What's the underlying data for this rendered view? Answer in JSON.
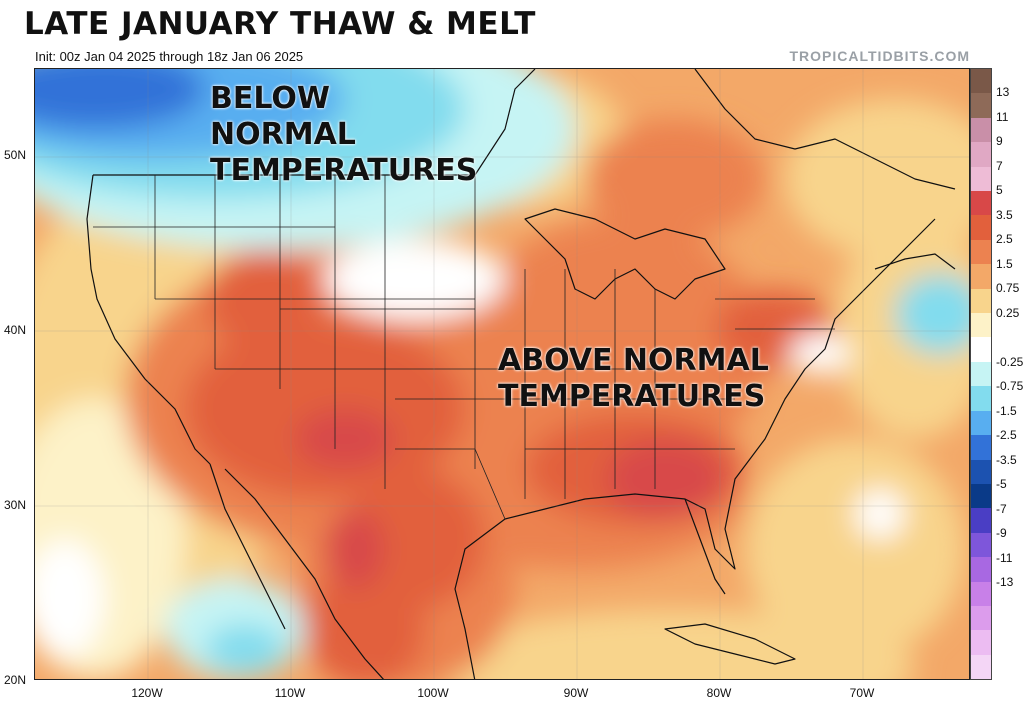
{
  "title": "LATE JANUARY THAW & MELT",
  "subtitle": "Init: 00z Jan 04 2025 through 18z Jan 06 2025",
  "brand": "TROPICALTIDBITS.COM",
  "annotations": {
    "below": [
      "BELOW",
      "NORMAL",
      "TEMPERATURES"
    ],
    "above": [
      "ABOVE NORMAL",
      "TEMPERATURES"
    ]
  },
  "lat_labels": [
    "50N",
    "40N",
    "30N",
    "20N"
  ],
  "lon_labels": [
    "120W",
    "110W",
    "100W",
    "90W",
    "80W",
    "70W"
  ],
  "colorbar": {
    "labels": [
      "13",
      "11",
      "9",
      "7",
      "5",
      "3.5",
      "2.5",
      "1.5",
      "0.75",
      "0.25",
      "-0.25",
      "-0.75",
      "-1.5",
      "-2.5",
      "-3.5",
      "-5",
      "-7",
      "-9",
      "-11",
      "-13"
    ],
    "colors": [
      "#7a5848",
      "#8e6a58",
      "#c98fa8",
      "#e0a8c4",
      "#eebcd6",
      "#d84848",
      "#e2603c",
      "#ec8250",
      "#f3a868",
      "#f8d48c",
      "#fdf2c8",
      "#ffffff",
      "#c6f4f4",
      "#82dcee",
      "#58aef0",
      "#3272d8",
      "#1c52b0",
      "#0a3a88",
      "#4a3ec4",
      "#7e56da",
      "#a868e2",
      "#c880e8",
      "#dc9cec",
      "#ecbcf2",
      "#f4d6f6"
    ]
  },
  "colors": {
    "cold": "#58aef0",
    "warm": "#d84848",
    "border": "#222222"
  }
}
